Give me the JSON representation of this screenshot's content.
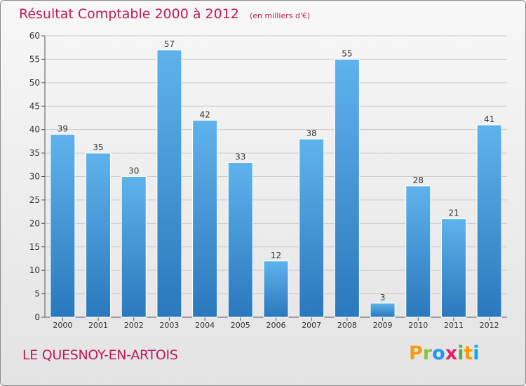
{
  "chart_data": {
    "type": "bar",
    "title": "Résultat Comptable 2000 à 2012",
    "subtitle": "(en milliers d'€)",
    "xlabel": "",
    "ylabel": "",
    "categories": [
      "2000",
      "2001",
      "2002",
      "2003",
      "2004",
      "2005",
      "2006",
      "2007",
      "2008",
      "2009",
      "2010",
      "2011",
      "2012"
    ],
    "values": [
      39,
      35,
      30,
      57,
      42,
      33,
      12,
      38,
      55,
      3,
      28,
      21,
      41
    ],
    "ylim": [
      0,
      60
    ],
    "yticks": [
      0,
      5,
      10,
      15,
      20,
      25,
      30,
      35,
      40,
      45,
      50,
      55,
      60
    ],
    "grid": true,
    "colors": {
      "bar_top": "#5fb3ec",
      "bar_bottom": "#2a78bd",
      "grid": "#cccccc",
      "axis": "#555555",
      "title": "#c2185b"
    }
  },
  "footer": {
    "commune": "LE QUESNOY-EN-ARTOIS",
    "brand_letters": [
      {
        "char": "P",
        "color": "#f39c12"
      },
      {
        "char": "r",
        "color": "#8bc34a"
      },
      {
        "char": "o",
        "color": "#2196f3"
      },
      {
        "char": "x",
        "color": "#e91e63"
      },
      {
        "char": "i",
        "color": "#4caf50"
      },
      {
        "char": "t",
        "color": "#ff9800"
      },
      {
        "char": "i",
        "color": "#03a9f4"
      }
    ]
  }
}
